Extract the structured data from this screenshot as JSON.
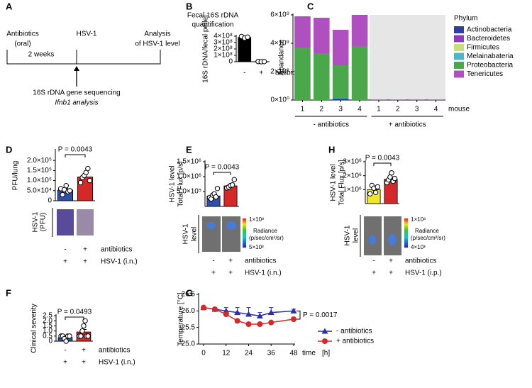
{
  "panel_labels": [
    "A",
    "B",
    "C",
    "D",
    "E",
    "F",
    "G",
    "H"
  ],
  "diagram": {
    "start": [
      "Antibiotics",
      "(oral)"
    ],
    "duration": "2 weeks",
    "infection": "HSV-1",
    "end": [
      "Analysis",
      "of HSV-1 level"
    ],
    "note": [
      "16S rDNA gene sequencing",
      "Ifnb1 analysis"
    ]
  },
  "chart_data": [
    {
      "type": "bar",
      "title": [
        "Fecal 16S rDNA",
        "quantification"
      ],
      "ylabel": "16S rDNA/fecal pellet",
      "values": [
        380000000,
        2000000
      ],
      "colors": [
        "#000000",
        "#000000"
      ],
      "points": [
        [
          395000000,
          370000000,
          385000000
        ],
        [
          3000000,
          0,
          2000000
        ]
      ],
      "ylim": [
        0,
        400000000
      ],
      "yticks": [
        0,
        {
          "value": 100000000,
          "label": "1×10⁸"
        },
        {
          "value": 200000000,
          "label": "2×10⁸"
        },
        {
          "value": 300000000,
          "label": "3×10⁸"
        },
        {
          "value": 400000000,
          "label": "4×10⁸"
        }
      ],
      "conditions": [
        {
          "name": "antibiotics",
          "values": [
            "-",
            "+"
          ]
        }
      ]
    },
    {
      "type": "stacked_bar",
      "ylabel": "Abandance",
      "xlabel": "mouse",
      "legend_title": "Phylum",
      "categories": [
        "1",
        "2",
        "3",
        "4",
        "1",
        "2",
        "3",
        "4"
      ],
      "groups": [
        "- antibiotics",
        "+ antibiotics"
      ],
      "series": [
        {
          "name": "Actinobacteria",
          "color": "#2e3f9e",
          "values": [
            0,
            0,
            100000000,
            0,
            0,
            0,
            0,
            0
          ]
        },
        {
          "name": "Bacteroidetes",
          "color": "#8a3fb8",
          "values": [
            0,
            0,
            0,
            0,
            0,
            0,
            0,
            0
          ]
        },
        {
          "name": "Firmicutes",
          "color": "#c7e07a",
          "values": [
            0,
            0,
            0,
            0,
            0,
            0,
            0,
            0
          ]
        },
        {
          "name": "Melainabateria",
          "color": "#4bb8c4",
          "values": [
            0,
            0,
            50000000,
            0,
            0,
            0,
            0,
            0
          ]
        },
        {
          "name": "Proteobacteria",
          "color": "#4aa84a",
          "values": [
            3700000000,
            3300000000,
            2300000000,
            3800000000,
            10000000,
            10000000,
            10000000,
            10000000
          ]
        },
        {
          "name": "Tenericutes",
          "color": "#b050c0",
          "values": [
            2200000000,
            2500000000,
            2500000000,
            2200000000,
            10000000,
            10000000,
            10000000,
            10000000
          ]
        }
      ],
      "ylim": [
        0,
        6000000000
      ],
      "yticks": [
        {
          "value": 0,
          "label": "0×10⁰"
        },
        {
          "value": 2000000000,
          "label": "2×10⁹"
        },
        {
          "value": 4000000000,
          "label": "4×10⁹"
        },
        {
          "value": 6000000000,
          "label": "6×10⁹"
        }
      ]
    },
    {
      "type": "bar",
      "ylabel": "PFU/lung",
      "values": [
        53000,
        118000
      ],
      "errors": [
        9000,
        13000
      ],
      "colors": [
        "#2f4fa8",
        "#d62828"
      ],
      "points": [
        [
          60000,
          30000,
          55000,
          75000,
          45000,
          50000
        ],
        [
          90000,
          115000,
          125000,
          140000,
          160000,
          100000
        ]
      ],
      "ylim": [
        0,
        250000
      ],
      "yticks": [
        0,
        {
          "value": 50000,
          "label": "5.0×10⁴"
        },
        {
          "value": 100000,
          "label": "1.0×10⁵"
        },
        {
          "value": 150000,
          "label": "1.5×10⁵"
        },
        {
          "value": 200000,
          "label": "2.0×10⁵"
        }
      ],
      "annotation": "P = 0.0043",
      "image_panel": {
        "label": [
          "HSV-1",
          "(PFU)"
        ]
      },
      "conditions": [
        {
          "name": "antibiotics",
          "values": [
            "-",
            "+"
          ]
        },
        {
          "name": "HSV-1 (i.n.)",
          "values": [
            "+",
            "+"
          ]
        }
      ]
    },
    {
      "type": "bar",
      "ylabel": [
        "HSV-1 level",
        "Total Flux [p/s]"
      ],
      "values": [
        350000,
        690000
      ],
      "errors": [
        60000,
        50000
      ],
      "colors": [
        "#2f4fa8",
        "#d62828"
      ],
      "points": [
        [
          300000,
          250000,
          380000,
          420000,
          320000,
          600000
        ],
        [
          620000,
          650000,
          700000,
          720000,
          900000
        ]
      ],
      "ylim": [
        0,
        1500000
      ],
      "yticks": [
        {
          "value": 500000,
          "label": "5.0×10⁵"
        },
        {
          "value": 1000000,
          "label": "1.0×10⁶"
        },
        {
          "value": 1500000,
          "label": "1.5×10⁶"
        }
      ],
      "annotation": "P = 0.0043",
      "image_panel": {
        "label": [
          "HSV-1",
          "level"
        ],
        "scale_max": "1×10⁸",
        "scale_title": "Radiance",
        "scale_unit": "(p/sec/cm²/sr)",
        "scale_min": "5×10³"
      },
      "conditions": [
        {
          "name": "antibiotics",
          "values": [
            "-",
            "+"
          ]
        },
        {
          "name": "HSV-1 (i.n.)",
          "values": [
            "+",
            "+"
          ]
        }
      ]
    },
    {
      "type": "bar",
      "ylabel": [
        "HSV-1 level",
        "Total Flux [p/s]"
      ],
      "values": [
        1000000,
        1750000
      ],
      "errors": [
        150000,
        150000
      ],
      "colors": [
        "#f2e62a",
        "#d62828"
      ],
      "points": [
        [
          700000,
          1300000,
          1100000,
          800000,
          1200000
        ],
        [
          1500000,
          1700000,
          1900000,
          2200000,
          1600000,
          1800000
        ]
      ],
      "ylim": [
        0,
        3000000
      ],
      "yticks": [
        {
          "value": 1000000,
          "label": "1×10⁶"
        },
        {
          "value": 2000000,
          "label": "2×10⁶"
        },
        {
          "value": 3000000,
          "label": "3×10⁶"
        }
      ],
      "annotation": "P = 0.0043",
      "image_panel": {
        "label": [
          "HSV-1",
          "level"
        ],
        "scale_max": "1×10⁸",
        "scale_title": "Radiance",
        "scale_unit": "(p/sec/cm²/sr)",
        "scale_min": "4×10³"
      },
      "conditions": [
        {
          "name": "antibiotics",
          "values": [
            "-",
            "+"
          ]
        },
        {
          "name": "HSV-1 (i.p.)",
          "values": [
            "+",
            "+"
          ]
        }
      ]
    },
    {
      "type": "bar",
      "ylabel": "Clinical severity",
      "values": [
        0.35,
        0.9
      ],
      "errors": [
        0.1,
        0.25
      ],
      "colors": [
        "#2f4fa8",
        "#d62828"
      ],
      "points": [
        [
          0.5,
          0.5,
          0.25,
          0,
          0.5,
          0.5
        ],
        [
          0.5,
          0.5,
          1,
          1.5,
          2,
          0.5,
          0.5
        ]
      ],
      "ylim": [
        0,
        2.5
      ],
      "yticks": [
        0,
        0.5,
        {
          "value": 1,
          "label": "1.0"
        },
        1.5,
        {
          "value": 2,
          "label": "2.0"
        },
        2.5
      ],
      "annotation": "P = 0.0493",
      "conditions": [
        {
          "name": "antibiotics",
          "values": [
            "-",
            "+"
          ]
        },
        {
          "name": "HSV-1 (i.n.)",
          "values": [
            "+",
            "+"
          ]
        }
      ]
    },
    {
      "type": "line",
      "ylabel": "Temperature [°C]",
      "xlabel": "time",
      "xunit": "[h]",
      "x": [
        0,
        6,
        12,
        18,
        24,
        30,
        36,
        48
      ],
      "series": [
        {
          "name": "- antibiotics",
          "color": "#2a2fa8",
          "marker": "triangle",
          "values": [
            26.1,
            26.05,
            26.0,
            25.95,
            25.9,
            25.85,
            25.95,
            26.0
          ],
          "errors": [
            0.05,
            0.05,
            0.1,
            0.15,
            0.2,
            0.1,
            0.15,
            0.05
          ]
        },
        {
          "name": "+ antibiotics",
          "color": "#d62828",
          "marker": "circle",
          "values": [
            26.1,
            26.05,
            25.9,
            25.7,
            25.6,
            25.6,
            25.65,
            25.75
          ],
          "errors": [
            0.05,
            0.05,
            0.05,
            0.05,
            0.05,
            0.05,
            0.05,
            0.05
          ]
        }
      ],
      "xlim": [
        0,
        48
      ],
      "xticks": [
        0,
        12,
        24,
        36,
        48
      ],
      "ylim": [
        25,
        26.5
      ],
      "yticks": [
        {
          "value": 25,
          "label": "25.0"
        },
        {
          "value": 25.5,
          "label": "25.5"
        },
        {
          "value": 26,
          "label": "26.0"
        },
        {
          "value": 26.5,
          "label": "26.5"
        }
      ],
      "annotation": "P = 0.0017"
    }
  ]
}
